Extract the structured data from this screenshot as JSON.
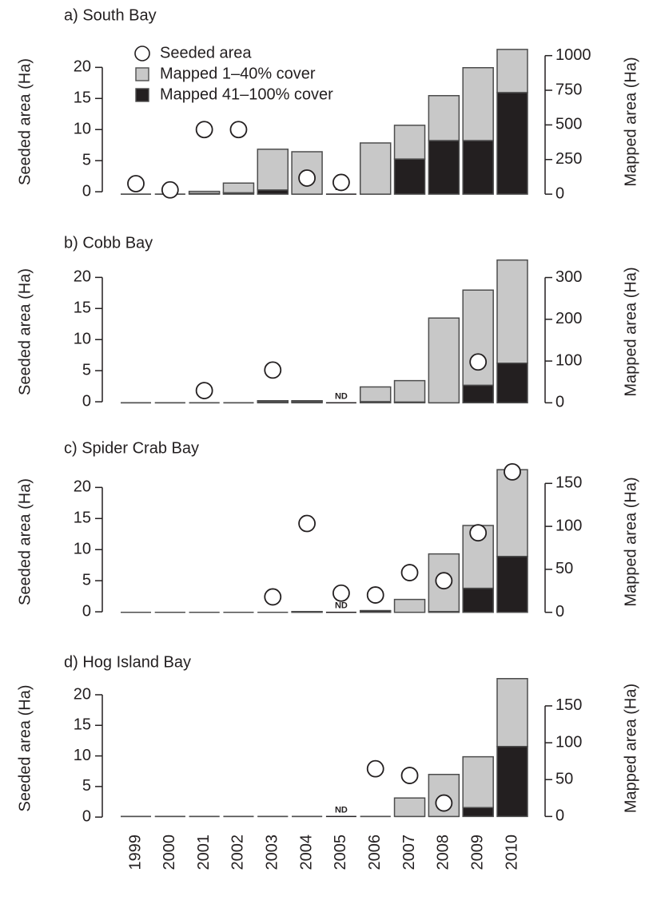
{
  "chart_data": [
    {
      "type": "bar",
      "stacked": true,
      "title": "a) South Bay",
      "ylabel": "Seeded area (Ha)",
      "y2label": "Mapped area (Ha)",
      "ylim": [
        -0.5,
        23
      ],
      "yticks": [
        0,
        5,
        10,
        15,
        20
      ],
      "y2lim": [
        -5,
        1050
      ],
      "y2ticks": [
        0,
        250,
        500,
        750,
        1000
      ],
      "annotation": "ND",
      "legend": "top-left",
      "series": [
        {
          "name": "Seeded area",
          "type": "scatter",
          "color": "#ffffff",
          "values": [
            1.3,
            0.3,
            10,
            10,
            null,
            2.2,
            1.5,
            null,
            null,
            null,
            null,
            null
          ]
        },
        {
          "name": "Mapped 1–40% cover",
          "color": "#c8c8c8",
          "axis": "y2",
          "values": [
            0,
            0,
            15,
            70,
            294,
            306,
            null,
            370,
            243,
            324,
            526,
            311
          ]
        },
        {
          "name": "Mapped 41–100% cover",
          "color": "#231f20",
          "axis": "y2",
          "values": [
            0,
            0,
            5,
            10,
            30,
            0,
            null,
            0,
            254,
            387,
            387,
            734
          ]
        }
      ]
    },
    {
      "type": "bar",
      "stacked": true,
      "title": "b) Cobb Bay",
      "ylabel": "Seeded area (Ha)",
      "y2label": "Mapped area (Ha)",
      "ylim": [
        -0.5,
        23
      ],
      "yticks": [
        0,
        5,
        10,
        15,
        20
      ],
      "y2lim": [
        -5,
        345
      ],
      "y2ticks": [
        0,
        100,
        200,
        300
      ],
      "annotation": "ND",
      "series": [
        {
          "type": "scatter",
          "color": "#ffffff",
          "values": [
            null,
            null,
            1.8,
            null,
            5.1,
            null,
            null,
            null,
            null,
            null,
            6.4,
            null
          ]
        },
        {
          "color": "#c8c8c8",
          "axis": "y2",
          "values": [
            0,
            0,
            0,
            0,
            2,
            2,
            null,
            35,
            51,
            203,
            228,
            247
          ]
        },
        {
          "color": "#231f20",
          "axis": "y2",
          "values": [
            0,
            0,
            0,
            0,
            3,
            3,
            null,
            3,
            2,
            0,
            42,
            95
          ]
        }
      ]
    },
    {
      "type": "bar",
      "stacked": true,
      "title": "c) Spider Crab Bay",
      "ylabel": "Seeded area (Ha)",
      "y2label": "Mapped area (Ha)",
      "ylim": [
        -0.5,
        23
      ],
      "yticks": [
        0,
        5,
        10,
        15,
        20
      ],
      "y2lim": [
        -3,
        167
      ],
      "y2ticks": [
        0,
        50,
        100,
        150
      ],
      "annotation": "ND",
      "series": [
        {
          "type": "scatter",
          "color": "#ffffff",
          "values": [
            null,
            null,
            null,
            null,
            2.4,
            14.2,
            3,
            2.7,
            6.3,
            5,
            12.7,
            22.5
          ]
        },
        {
          "color": "#c8c8c8",
          "axis": "y2",
          "values": [
            0,
            0,
            0,
            0,
            0,
            1,
            null,
            0,
            15,
            67,
            73,
            101
          ]
        },
        {
          "color": "#231f20",
          "axis": "y2",
          "values": [
            0,
            0,
            0,
            0,
            0,
            0,
            null,
            2,
            0,
            1,
            28,
            65
          ]
        }
      ]
    },
    {
      "type": "bar",
      "stacked": true,
      "title": "d) Hog Island Bay",
      "ylabel": "Seeded area (Ha)",
      "y2label": "Mapped area (Ha)",
      "ylim": [
        -0.5,
        23
      ],
      "yticks": [
        0,
        5,
        10,
        15,
        20
      ],
      "y2lim": [
        -5,
        190
      ],
      "y2ticks": [
        0,
        50,
        100,
        150
      ],
      "annotation": "ND",
      "categories": [
        "1999",
        "2000",
        "2001",
        "2002",
        "2003",
        "2004",
        "2005",
        "2006",
        "2007",
        "2008",
        "2009",
        "2010"
      ],
      "series": [
        {
          "type": "scatter",
          "color": "#ffffff",
          "values": [
            null,
            null,
            null,
            null,
            null,
            null,
            null,
            7.9,
            6.8,
            2.3,
            null,
            null
          ]
        },
        {
          "color": "#c8c8c8",
          "axis": "y2",
          "values": [
            0,
            0,
            0,
            0,
            0,
            0,
            null,
            0,
            25,
            57,
            69,
            92
          ]
        },
        {
          "color": "#231f20",
          "axis": "y2",
          "values": [
            0,
            0,
            0,
            0,
            0,
            0,
            null,
            0,
            0,
            0,
            12,
            95
          ]
        }
      ]
    }
  ]
}
